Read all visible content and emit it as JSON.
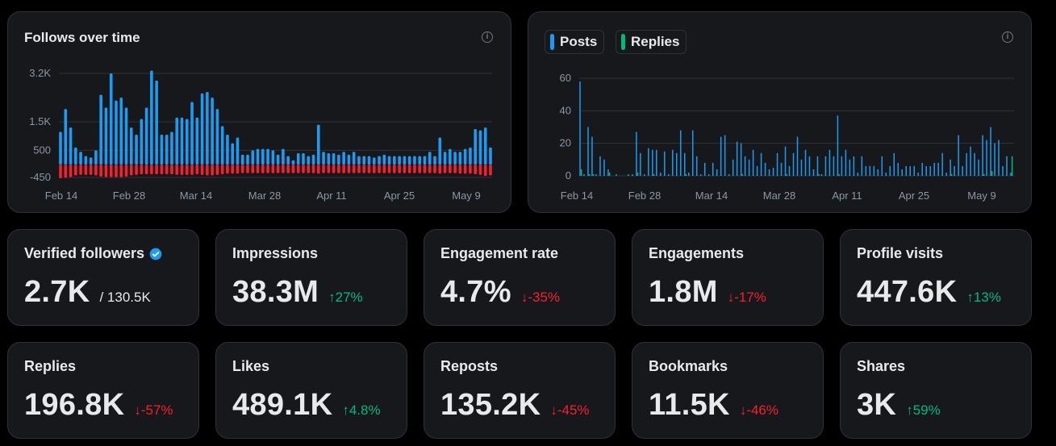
{
  "follows_chart": {
    "title": "Follows over time",
    "info_icon": "info-icon",
    "y_ticks": [
      {
        "label": "3.2K",
        "value": 3200
      },
      {
        "label": "1.5K",
        "value": 1500
      },
      {
        "label": "500",
        "value": 500
      },
      {
        "label": "-450",
        "value": -450
      }
    ],
    "x_ticks": [
      "Feb 14",
      "Feb 28",
      "Mar 14",
      "Mar 28",
      "Apr 11",
      "Apr 25",
      "May 9"
    ],
    "colors": {
      "follows": "#1d9bf0",
      "unfollows": "#f4212e",
      "grid": "#2f3336",
      "axis_text": "#8b98a5"
    }
  },
  "posts_chart": {
    "legend": [
      {
        "label": "Posts",
        "color": "#1d9bf0"
      },
      {
        "label": "Replies",
        "color": "#00ba7c"
      }
    ],
    "info_icon": "info-icon",
    "y_ticks": [
      "60",
      "40",
      "20",
      "0"
    ],
    "x_ticks": [
      "Feb 14",
      "Feb 28",
      "Mar 14",
      "Mar 28",
      "Apr 11",
      "Apr 25",
      "May 9"
    ]
  },
  "metrics": [
    {
      "label": "Verified followers",
      "value": "2.7K",
      "total": "/ 130.5K",
      "change": "",
      "direction": "",
      "badge": true
    },
    {
      "label": "Impressions",
      "value": "38.3M",
      "change": "27%",
      "direction": "up"
    },
    {
      "label": "Engagement rate",
      "value": "4.7%",
      "change": "-35%",
      "direction": "down"
    },
    {
      "label": "Engagements",
      "value": "1.8M",
      "change": "-17%",
      "direction": "down"
    },
    {
      "label": "Profile visits",
      "value": "447.6K",
      "change": "13%",
      "direction": "up"
    },
    {
      "label": "Replies",
      "value": "196.8K",
      "change": "-57%",
      "direction": "down"
    },
    {
      "label": "Likes",
      "value": "489.1K",
      "change": "4.8%",
      "direction": "up"
    },
    {
      "label": "Reposts",
      "value": "135.2K",
      "change": "-45%",
      "direction": "down"
    },
    {
      "label": "Bookmarks",
      "value": "11.5K",
      "change": "-46%",
      "direction": "down"
    },
    {
      "label": "Shares",
      "value": "3K",
      "change": "59%",
      "direction": "up"
    }
  ],
  "chart_data": [
    {
      "type": "bar",
      "title": "Follows over time",
      "xlabel": "",
      "ylabel": "",
      "ylim": [
        -450,
        3300
      ],
      "x_tick_labels": [
        "Feb 14",
        "Feb 28",
        "Mar 14",
        "Mar 28",
        "Apr 11",
        "Apr 25",
        "May 9"
      ],
      "series": [
        {
          "name": "Follows",
          "values": [
            1150,
            1950,
            1300,
            600,
            450,
            300,
            250,
            500,
            2450,
            2000,
            3200,
            2250,
            2350,
            2000,
            1300,
            1050,
            1600,
            2000,
            3300,
            2950,
            1050,
            1050,
            1150,
            1650,
            1650,
            1600,
            2200,
            1650,
            2500,
            2550,
            2350,
            1950,
            1350,
            1050,
            750,
            950,
            350,
            350,
            500,
            550,
            550,
            550,
            500,
            350,
            550,
            300,
            150,
            400,
            400,
            300,
            350,
            1400,
            450,
            400,
            400,
            350,
            450,
            350,
            450,
            300,
            300,
            300,
            250,
            300,
            350,
            300,
            300,
            300,
            300,
            300,
            300,
            300,
            300,
            450,
            300,
            950,
            450,
            550,
            450,
            450,
            550,
            600,
            1250,
            1200,
            1300,
            600
          ]
        },
        {
          "name": "Unfollows",
          "values": [
            -480,
            -460,
            -440,
            -380,
            -360,
            -360,
            -360,
            -380,
            -420,
            -440,
            -440,
            -440,
            -440,
            -420,
            -380,
            -360,
            -340,
            -340,
            -340,
            -340,
            -340,
            -340,
            -340,
            -360,
            -360,
            -360,
            -360,
            -340,
            -360,
            -380,
            -380,
            -360,
            -340,
            -320,
            -320,
            -320,
            -300,
            -300,
            -300,
            -300,
            -300,
            -300,
            -300,
            -300,
            -300,
            -300,
            -300,
            -300,
            -300,
            -300,
            -300,
            -320,
            -300,
            -300,
            -300,
            -300,
            -300,
            -300,
            -300,
            -300,
            -300,
            -300,
            -300,
            -300,
            -300,
            -300,
            -300,
            -300,
            -300,
            -300,
            -300,
            -300,
            -300,
            -300,
            -300,
            -320,
            -300,
            -300,
            -300,
            -320,
            -320,
            -320,
            -340,
            -360,
            -400,
            -380
          ]
        }
      ]
    },
    {
      "type": "bar",
      "title": "",
      "xlabel": "",
      "ylabel": "",
      "ylim": [
        0,
        60
      ],
      "x_tick_labels": [
        "Feb 14",
        "Feb 28",
        "Mar 14",
        "Mar 28",
        "Apr 11",
        "Apr 25",
        "May 9"
      ],
      "series": [
        {
          "name": "Posts",
          "values": [
            58,
            1,
            30,
            24,
            1,
            12,
            10,
            4,
            0,
            1,
            0,
            0,
            1,
            1,
            27,
            14,
            1,
            17,
            16,
            16,
            2,
            15,
            1,
            16,
            14,
            28,
            14,
            2,
            28,
            12,
            1,
            8,
            1,
            8,
            4,
            24,
            25,
            1,
            10,
            21,
            20,
            12,
            10,
            16,
            6,
            14,
            8,
            4,
            5,
            14,
            8,
            18,
            6,
            14,
            24,
            10,
            16,
            12,
            4,
            12,
            1,
            12,
            16,
            12,
            37,
            12,
            16,
            10,
            12,
            2,
            12,
            6,
            6,
            6,
            4,
            12,
            2,
            6,
            14,
            8,
            4,
            6,
            6,
            6,
            2,
            8,
            6,
            6,
            8,
            8,
            14,
            2,
            10,
            6,
            25,
            6,
            14,
            18,
            14,
            10,
            25,
            22,
            30,
            20,
            22,
            6,
            12,
            2
          ]
        },
        {
          "name": "Replies",
          "values": [
            4,
            0,
            1,
            1,
            0,
            0,
            0,
            2,
            0,
            0,
            0,
            0,
            0,
            0,
            2,
            0,
            0,
            0,
            1,
            0,
            0,
            0,
            0,
            0,
            0,
            0,
            1,
            0,
            0,
            0,
            0,
            0,
            0,
            0,
            0,
            0,
            0,
            0,
            0,
            0,
            1,
            0,
            0,
            0,
            0,
            0,
            0,
            0,
            0,
            0,
            0,
            1,
            0,
            0,
            0,
            0,
            0,
            0,
            0,
            1,
            0,
            0,
            0,
            0,
            1,
            0,
            0,
            0,
            0,
            0,
            0,
            0,
            0,
            0,
            0,
            0,
            0,
            0,
            0,
            0,
            0,
            0,
            0,
            0,
            0,
            0,
            0,
            0,
            0,
            0,
            0,
            0,
            1,
            0,
            0,
            0,
            0,
            0,
            0,
            0,
            1,
            0,
            3,
            0,
            0,
            0,
            0,
            12
          ]
        }
      ]
    }
  ]
}
